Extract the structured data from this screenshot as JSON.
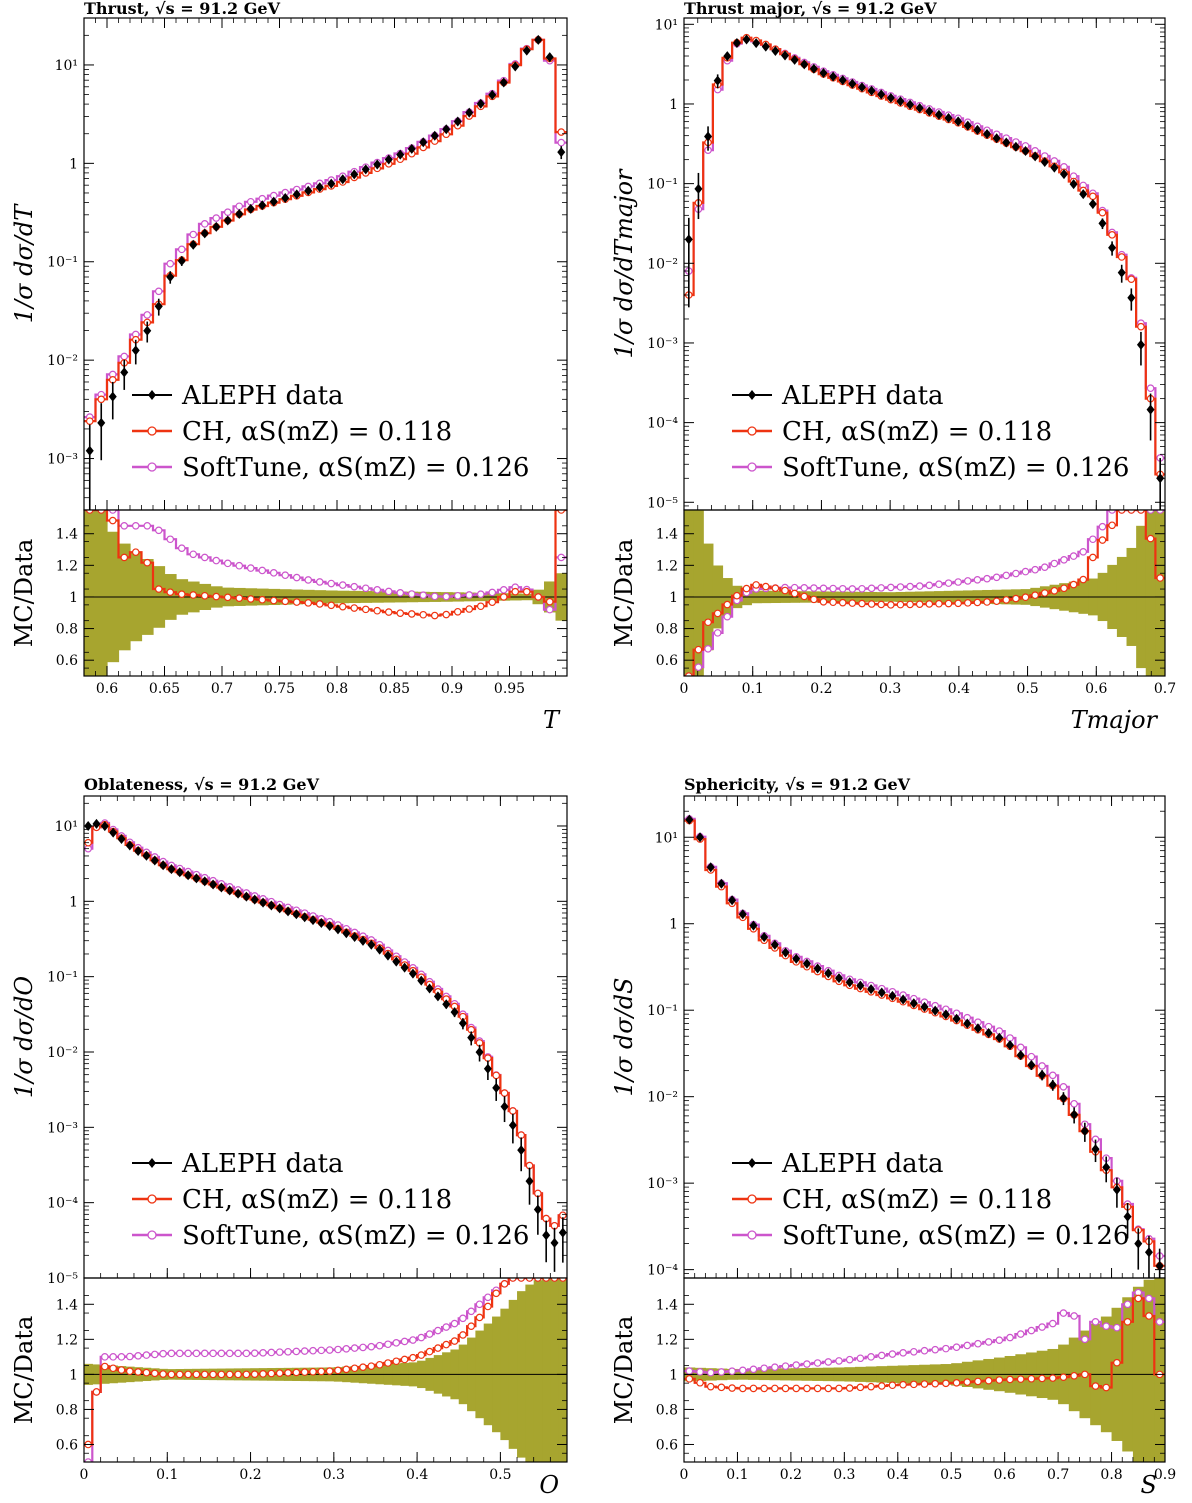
{
  "colors": {
    "data": "#000000",
    "ch": "#ee3311",
    "soft": "#cc55cc",
    "band": "#a7a52f"
  },
  "legend": {
    "data": "ALEPH data",
    "ch": "CH, αS(mZ) = 0.118",
    "soft": "SoftTune, αS(mZ) = 0.126"
  },
  "ratio_ylabel": "MC/Data",
  "ratio_ticks": [
    "0.6",
    "0.8",
    "1",
    "1.2",
    "1.4"
  ],
  "chart_data": [
    {
      "type": "line",
      "title": "Thrust, √s = 91.2 GeV",
      "ylabel": "1/σ dσ/dT",
      "xlabel": "T",
      "yscale": "log",
      "xlim": [
        0.58,
        1.0
      ],
      "ylim": [
        0.0003,
        30
      ],
      "xticks": [
        "0.6",
        "0.65",
        "0.7",
        "0.75",
        "0.8",
        "0.85",
        "0.9",
        "0.95"
      ],
      "yticks": [
        "10⁻³",
        "10⁻²",
        "10⁻¹",
        "1",
        "10¹"
      ],
      "data_knots": [
        [
          0.585,
          0.0012
        ],
        [
          0.6,
          0.0032
        ],
        [
          0.62,
          0.01
        ],
        [
          0.64,
          0.025
        ],
        [
          0.655,
          0.07
        ],
        [
          0.68,
          0.18
        ],
        [
          0.72,
          0.33
        ],
        [
          0.8,
          0.65
        ],
        [
          0.86,
          1.3
        ],
        [
          0.9,
          2.4
        ],
        [
          0.94,
          5.5
        ],
        [
          0.965,
          14
        ],
        [
          0.975,
          18
        ],
        [
          0.985,
          12
        ],
        [
          0.995,
          1.3
        ]
      ],
      "ch_ratio_knots": [
        [
          0.585,
          2.0
        ],
        [
          0.6,
          1.6
        ],
        [
          0.615,
          1.25
        ],
        [
          0.63,
          1.3
        ],
        [
          0.645,
          1.05
        ],
        [
          0.66,
          1.02
        ],
        [
          0.7,
          1.0
        ],
        [
          0.78,
          0.96
        ],
        [
          0.85,
          0.9
        ],
        [
          0.89,
          0.88
        ],
        [
          0.93,
          0.95
        ],
        [
          0.96,
          1.05
        ],
        [
          0.975,
          1.0
        ],
        [
          0.985,
          0.97
        ],
        [
          0.995,
          1.6
        ]
      ],
      "soft_ratio_knots": [
        [
          0.585,
          2.2
        ],
        [
          0.6,
          1.8
        ],
        [
          0.615,
          1.45
        ],
        [
          0.64,
          1.45
        ],
        [
          0.67,
          1.28
        ],
        [
          0.7,
          1.22
        ],
        [
          0.78,
          1.1
        ],
        [
          0.85,
          1.03
        ],
        [
          0.89,
          1.0
        ],
        [
          0.93,
          1.02
        ],
        [
          0.96,
          1.07
        ],
        [
          0.975,
          1.0
        ],
        [
          0.985,
          0.92
        ],
        [
          0.995,
          1.25
        ]
      ],
      "band_knots": [
        [
          0.585,
          0.85
        ],
        [
          0.6,
          0.45
        ],
        [
          0.62,
          0.3
        ],
        [
          0.64,
          0.22
        ],
        [
          0.66,
          0.12
        ],
        [
          0.7,
          0.06
        ],
        [
          0.8,
          0.04
        ],
        [
          0.9,
          0.03
        ],
        [
          0.97,
          0.02
        ],
        [
          0.995,
          0.15
        ]
      ],
      "nbins": 42
    },
    {
      "type": "line",
      "title": "Thrust major, √s = 91.2 GeV",
      "ylabel": "1/σ dσ/dTmajor",
      "xlabel": "Tmajor",
      "yscale": "log",
      "xlim": [
        0.0,
        0.7
      ],
      "ylim": [
        8e-06,
        12
      ],
      "xticks": [
        "0",
        "0.1",
        "0.2",
        "0.3",
        "0.4",
        "0.5",
        "0.6",
        "0.7"
      ],
      "yticks": [
        "10⁻⁵",
        "10⁻⁴",
        "10⁻³",
        "10⁻²",
        "10⁻¹",
        "1",
        "10¹"
      ],
      "data_knots": [
        [
          0.007,
          0.02
        ],
        [
          0.03,
          0.22
        ],
        [
          0.05,
          2.2
        ],
        [
          0.07,
          5.5
        ],
        [
          0.09,
          6.5
        ],
        [
          0.12,
          5.2
        ],
        [
          0.2,
          2.5
        ],
        [
          0.3,
          1.2
        ],
        [
          0.4,
          0.6
        ],
        [
          0.5,
          0.25
        ],
        [
          0.55,
          0.14
        ],
        [
          0.6,
          0.05
        ],
        [
          0.63,
          0.011
        ],
        [
          0.655,
          0.003
        ],
        [
          0.675,
          0.0003
        ],
        [
          0.69,
          2e-05
        ]
      ],
      "ch_ratio_knots": [
        [
          0.007,
          0.2
        ],
        [
          0.025,
          0.8
        ],
        [
          0.05,
          0.9
        ],
        [
          0.08,
          1.02
        ],
        [
          0.1,
          1.08
        ],
        [
          0.14,
          1.05
        ],
        [
          0.2,
          0.97
        ],
        [
          0.3,
          0.95
        ],
        [
          0.4,
          0.96
        ],
        [
          0.45,
          0.97
        ],
        [
          0.5,
          1.0
        ],
        [
          0.55,
          1.05
        ],
        [
          0.58,
          1.1
        ],
        [
          0.6,
          1.3
        ],
        [
          0.63,
          1.5
        ],
        [
          0.66,
          1.8
        ],
        [
          0.69,
          1.12
        ]
      ],
      "soft_ratio_knots": [
        [
          0.007,
          0.4
        ],
        [
          0.025,
          0.6
        ],
        [
          0.05,
          0.78
        ],
        [
          0.08,
          1.0
        ],
        [
          0.1,
          1.05
        ],
        [
          0.15,
          1.06
        ],
        [
          0.25,
          1.05
        ],
        [
          0.35,
          1.07
        ],
        [
          0.45,
          1.12
        ],
        [
          0.52,
          1.18
        ],
        [
          0.58,
          1.28
        ],
        [
          0.61,
          1.45
        ],
        [
          0.64,
          1.7
        ],
        [
          0.67,
          1.9
        ],
        [
          0.69,
          1.8
        ]
      ],
      "band_knots": [
        [
          0.005,
          0.9
        ],
        [
          0.02,
          0.6
        ],
        [
          0.04,
          0.25
        ],
        [
          0.07,
          0.08
        ],
        [
          0.1,
          0.04
        ],
        [
          0.3,
          0.03
        ],
        [
          0.5,
          0.05
        ],
        [
          0.6,
          0.12
        ],
        [
          0.65,
          0.3
        ],
        [
          0.68,
          0.6
        ],
        [
          0.7,
          0.9
        ]
      ],
      "nbins": 50
    },
    {
      "type": "line",
      "title": "Oblateness, √s = 91.2 GeV",
      "ylabel": "1/σ dσ/dO",
      "xlabel": "O",
      "yscale": "log",
      "xlim": [
        0.0,
        0.58
      ],
      "ylim": [
        1e-05,
        25
      ],
      "xticks": [
        "0",
        "0.1",
        "0.2",
        "0.3",
        "0.4",
        "0.5"
      ],
      "yticks": [
        "10⁻⁵",
        "10⁻⁴",
        "10⁻³",
        "10⁻²",
        "10⁻¹",
        "1",
        "10¹"
      ],
      "data_knots": [
        [
          0.005,
          10
        ],
        [
          0.02,
          11
        ],
        [
          0.03,
          9
        ],
        [
          0.06,
          5
        ],
        [
          0.1,
          2.8
        ],
        [
          0.2,
          1.1
        ],
        [
          0.3,
          0.45
        ],
        [
          0.35,
          0.25
        ],
        [
          0.4,
          0.1
        ],
        [
          0.45,
          0.03
        ],
        [
          0.48,
          0.008
        ],
        [
          0.5,
          0.0025
        ],
        [
          0.52,
          0.0008
        ],
        [
          0.54,
          0.00012
        ],
        [
          0.56,
          2.5e-05
        ],
        [
          0.575,
          4e-05
        ]
      ],
      "ch_ratio_knots": [
        [
          0.005,
          0.6
        ],
        [
          0.02,
          1.05
        ],
        [
          0.05,
          1.02
        ],
        [
          0.1,
          1.0
        ],
        [
          0.2,
          1.0
        ],
        [
          0.3,
          1.02
        ],
        [
          0.35,
          1.05
        ],
        [
          0.4,
          1.1
        ],
        [
          0.45,
          1.2
        ],
        [
          0.48,
          1.35
        ],
        [
          0.5,
          1.5
        ],
        [
          0.53,
          1.6
        ],
        [
          0.57,
          1.7
        ]
      ],
      "soft_ratio_knots": [
        [
          0.005,
          0.5
        ],
        [
          0.02,
          1.1
        ],
        [
          0.05,
          1.1
        ],
        [
          0.1,
          1.12
        ],
        [
          0.2,
          1.12
        ],
        [
          0.3,
          1.14
        ],
        [
          0.35,
          1.16
        ],
        [
          0.4,
          1.2
        ],
        [
          0.45,
          1.3
        ],
        [
          0.48,
          1.42
        ],
        [
          0.5,
          1.5
        ],
        [
          0.53,
          1.6
        ],
        [
          0.57,
          1.7
        ]
      ],
      "band_knots": [
        [
          0.005,
          0.06
        ],
        [
          0.1,
          0.03
        ],
        [
          0.3,
          0.04
        ],
        [
          0.4,
          0.07
        ],
        [
          0.45,
          0.15
        ],
        [
          0.5,
          0.35
        ],
        [
          0.53,
          0.5
        ],
        [
          0.57,
          0.6
        ]
      ],
      "nbins": 58
    },
    {
      "type": "line",
      "title": "Sphericity, √s = 91.2 GeV",
      "ylabel": "1/σ dσ/dS",
      "xlabel": "S",
      "yscale": "log",
      "xlim": [
        0.0,
        0.9
      ],
      "ylim": [
        8e-05,
        30
      ],
      "xticks": [
        "0",
        "0.1",
        "0.2",
        "0.3",
        "0.4",
        "0.5",
        "0.6",
        "0.7",
        "0.8",
        "0.9"
      ],
      "yticks": [
        "10⁻⁴",
        "10⁻³",
        "10⁻²",
        "10⁻¹",
        "1",
        "10¹"
      ],
      "data_knots": [
        [
          0.005,
          18
        ],
        [
          0.03,
          10
        ],
        [
          0.05,
          4.5
        ],
        [
          0.1,
          1.5
        ],
        [
          0.15,
          0.7
        ],
        [
          0.2,
          0.42
        ],
        [
          0.3,
          0.22
        ],
        [
          0.4,
          0.14
        ],
        [
          0.5,
          0.085
        ],
        [
          0.6,
          0.045
        ],
        [
          0.7,
          0.012
        ],
        [
          0.75,
          0.004
        ],
        [
          0.8,
          0.0012
        ],
        [
          0.85,
          0.0002
        ],
        [
          0.875,
          0.00015
        ],
        [
          0.895,
          0.0001
        ]
      ],
      "ch_ratio_knots": [
        [
          0.005,
          0.98
        ],
        [
          0.05,
          0.93
        ],
        [
          0.1,
          0.92
        ],
        [
          0.2,
          0.92
        ],
        [
          0.3,
          0.92
        ],
        [
          0.4,
          0.94
        ],
        [
          0.5,
          0.95
        ],
        [
          0.6,
          0.97
        ],
        [
          0.7,
          0.98
        ],
        [
          0.75,
          1.0
        ],
        [
          0.78,
          0.9
        ],
        [
          0.8,
          0.95
        ],
        [
          0.83,
          1.3
        ],
        [
          0.86,
          1.5
        ],
        [
          0.89,
          1.0
        ]
      ],
      "soft_ratio_knots": [
        [
          0.005,
          1.02
        ],
        [
          0.05,
          1.01
        ],
        [
          0.1,
          1.02
        ],
        [
          0.2,
          1.05
        ],
        [
          0.3,
          1.08
        ],
        [
          0.4,
          1.12
        ],
        [
          0.5,
          1.15
        ],
        [
          0.6,
          1.2
        ],
        [
          0.65,
          1.25
        ],
        [
          0.7,
          1.3
        ],
        [
          0.72,
          1.4
        ],
        [
          0.75,
          1.2
        ],
        [
          0.78,
          1.35
        ],
        [
          0.8,
          1.2
        ],
        [
          0.83,
          1.4
        ],
        [
          0.86,
          1.5
        ],
        [
          0.89,
          1.3
        ]
      ],
      "band_knots": [
        [
          0.005,
          0.04
        ],
        [
          0.1,
          0.03
        ],
        [
          0.3,
          0.04
        ],
        [
          0.5,
          0.06
        ],
        [
          0.6,
          0.1
        ],
        [
          0.7,
          0.15
        ],
        [
          0.75,
          0.25
        ],
        [
          0.8,
          0.35
        ],
        [
          0.85,
          0.5
        ],
        [
          0.9,
          0.6
        ]
      ],
      "nbins": 45
    }
  ]
}
